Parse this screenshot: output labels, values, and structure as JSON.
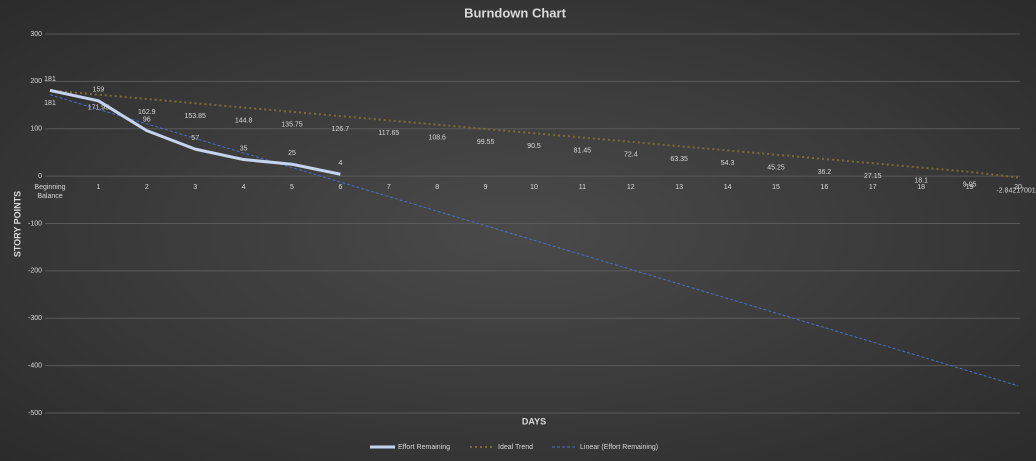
{
  "chart_data": {
    "type": "line",
    "title": "Burndown Chart",
    "x_label": "DAYS",
    "y_label": "STORY POINTS",
    "categories": [
      "Beginning Balance",
      "1",
      "2",
      "3",
      "4",
      "5",
      "6",
      "7",
      "8",
      "9",
      "10",
      "11",
      "12",
      "13",
      "14",
      "15",
      "16",
      "17",
      "18",
      "19",
      "20"
    ],
    "series": [
      {
        "name": "Effort Remaining",
        "color": "#c5d3ee",
        "style": "solid",
        "values": [
          181,
          159,
          96,
          57,
          35,
          25,
          4,
          null,
          null,
          null,
          null,
          null,
          null,
          null,
          null,
          null,
          null,
          null,
          null,
          null,
          null
        ]
      },
      {
        "name": "Ideal Trend",
        "color": "#7d6b34",
        "style": "dotted",
        "values": [
          181,
          171.95,
          162.9,
          153.85,
          144.8,
          135.75,
          126.7,
          117.65,
          108.6,
          99.55,
          90.5,
          81.45,
          72.4,
          63.35,
          54.3,
          45.25,
          36.2,
          27.15,
          18.1,
          9.05,
          -2.842170014
        ]
      }
    ],
    "trendline": {
      "name": "Linear (Effort Remaining)",
      "series": 0,
      "kind": "linear",
      "color": "#4a6fc4"
    },
    "ylim": [
      -500,
      300
    ],
    "yticks": [
      -500,
      -400,
      -300,
      -200,
      -100,
      0,
      100,
      200,
      300
    ],
    "grid": true,
    "data_labels": true,
    "legend": "bottom"
  }
}
